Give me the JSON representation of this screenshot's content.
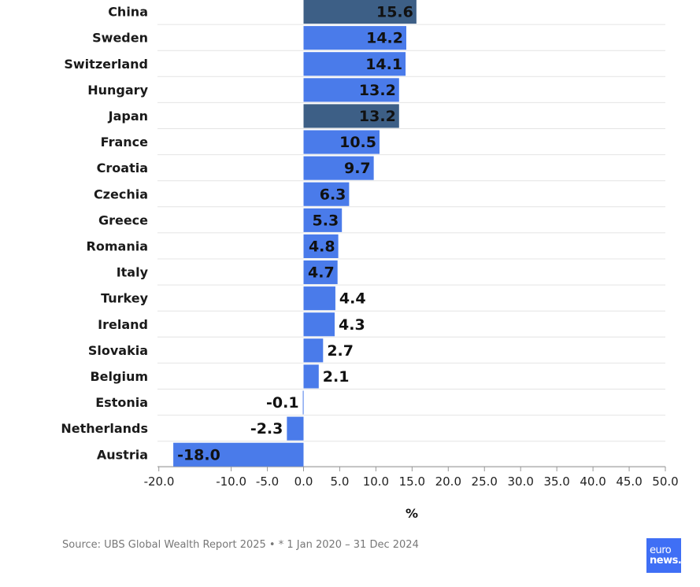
{
  "chart_data": {
    "type": "bar",
    "orientation": "horizontal",
    "categories": [
      "China",
      "Sweden",
      "Switzerland",
      "Hungary",
      "Japan",
      "France",
      "Croatia",
      "Czechia",
      "Greece",
      "Romania",
      "Italy",
      "Turkey",
      "Ireland",
      "Slovakia",
      "Belgium",
      "Estonia",
      "Netherlands",
      "Austria"
    ],
    "values": [
      15.6,
      14.2,
      14.1,
      13.2,
      13.2,
      10.5,
      9.7,
      6.3,
      5.3,
      4.8,
      4.7,
      4.4,
      4.3,
      2.7,
      2.1,
      -0.1,
      -2.3,
      -18.0
    ],
    "value_labels": [
      "15.6",
      "14.2",
      "14.1",
      "13.2",
      "13.2",
      "10.5",
      "9.7",
      "6.3",
      "5.3",
      "4.8",
      "4.7",
      "4.4",
      "4.3",
      "2.7",
      "2.1",
      "-0.1",
      "-2.3",
      "-18.0"
    ],
    "highlighted": [
      "China",
      "Japan"
    ],
    "colors": {
      "default": "#4a7bea",
      "highlight": "#3d5f86",
      "grid": "#e4e4e4",
      "axis": "#999999"
    },
    "xlabel": "%",
    "xlim": [
      -20,
      50
    ],
    "xticks": [
      -20,
      -10,
      -5,
      0,
      5,
      10,
      15,
      20,
      25,
      30,
      35,
      40,
      45,
      50
    ],
    "xtick_labels": [
      "-20.0",
      "-10.0",
      "-5.0",
      "0.0",
      "5.0",
      "10.0",
      "15.0",
      "20.0",
      "25.0",
      "30.0",
      "35.0",
      "40.0",
      "45.0",
      "50.0"
    ],
    "grid": true
  },
  "footer": {
    "source": "Source: UBS Global Wealth Report 2025 • * 1 Jan 2020 – 31 Dec 2024"
  },
  "logo": {
    "line1": "euro",
    "line2": "news."
  }
}
